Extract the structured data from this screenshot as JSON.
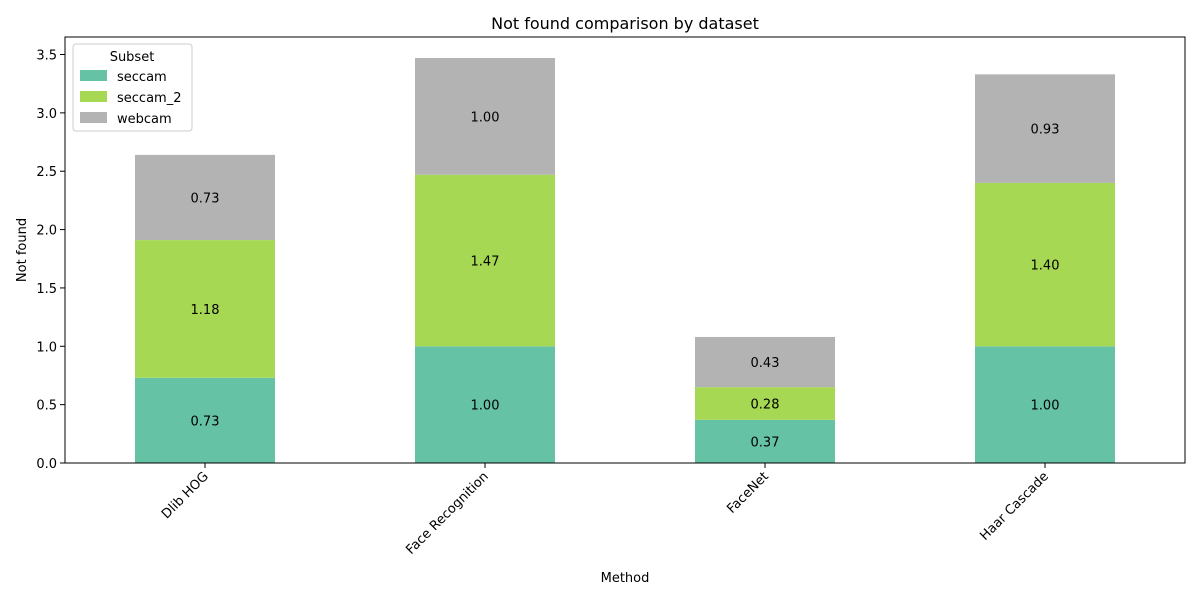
{
  "chart_data": {
    "type": "bar",
    "stacked": true,
    "title": "Not found comparison by dataset",
    "xlabel": "Method",
    "ylabel": "Not found",
    "categories": [
      "Dlib HOG",
      "Face Recognition",
      "FaceNet",
      "Haar Cascade"
    ],
    "series": [
      {
        "name": "seccam",
        "values": [
          0.73,
          1.0,
          0.37,
          1.0
        ],
        "color": "#66c2a5"
      },
      {
        "name": "seccam_2",
        "values": [
          1.18,
          1.47,
          0.28,
          1.4
        ],
        "color": "#a6d854"
      },
      {
        "name": "webcam",
        "values": [
          0.73,
          1.0,
          0.43,
          0.93
        ],
        "color": "#b3b3b3"
      }
    ],
    "ylim": [
      0,
      3.65
    ],
    "yticks": [
      "0.0",
      "0.5",
      "1.0",
      "1.5",
      "2.0",
      "2.5",
      "3.0",
      "3.5"
    ],
    "data_labels": [
      [
        "0.73",
        "1.00",
        "0.37",
        "1.00"
      ],
      [
        "1.18",
        "1.47",
        "0.28",
        "1.40"
      ],
      [
        "0.73",
        "1.00",
        "0.43",
        "0.93"
      ]
    ],
    "grid": false,
    "legend": {
      "title": "Subset",
      "placement": "top-left"
    }
  }
}
